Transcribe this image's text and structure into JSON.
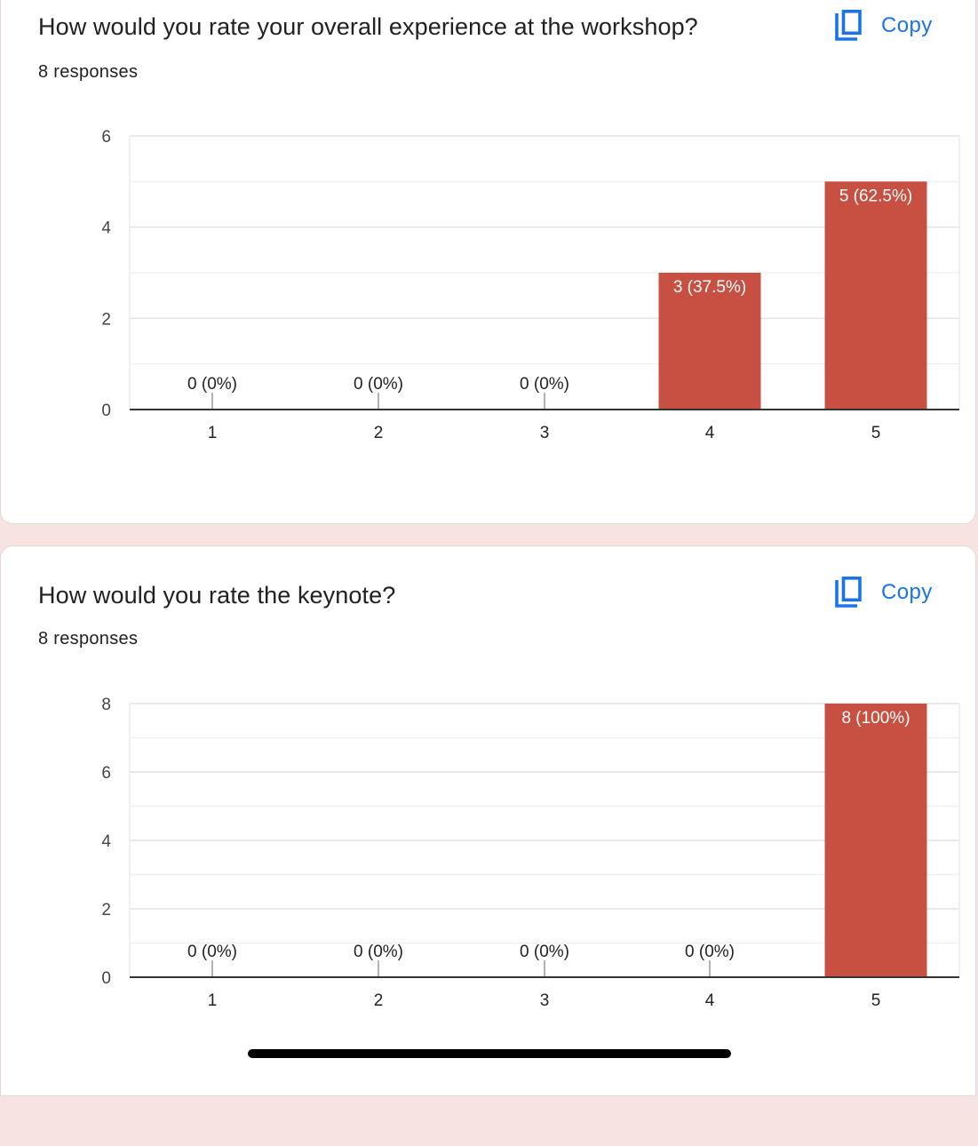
{
  "colors": {
    "bar": "#c85042",
    "accent": "#1a73e8",
    "grid": "#e8e8e8",
    "axis": "#333333",
    "text": "#202124"
  },
  "questions": [
    {
      "title": "How would you rate your overall experience at the workshop?",
      "responses": "8 responses",
      "copy_label": "Copy",
      "copy_icon": "copy-icon"
    },
    {
      "title": "How would you rate the keynote?",
      "responses": "8 responses",
      "copy_label": "Copy",
      "copy_icon": "copy-icon"
    }
  ],
  "chart_data": [
    {
      "type": "bar",
      "categories": [
        "1",
        "2",
        "3",
        "4",
        "5"
      ],
      "values": [
        0,
        0,
        0,
        3,
        5
      ],
      "labels": [
        "0 (0%)",
        "0 (0%)",
        "0 (0%)",
        "3 (37.5%)",
        "5 (62.5%)"
      ],
      "ylim": [
        0,
        6
      ],
      "yticks": [
        "0",
        "2",
        "4",
        "6"
      ],
      "grid": true,
      "legend": "none"
    },
    {
      "type": "bar",
      "categories": [
        "1",
        "2",
        "3",
        "4",
        "5"
      ],
      "values": [
        0,
        0,
        0,
        0,
        8
      ],
      "labels": [
        "0 (0%)",
        "0 (0%)",
        "0 (0%)",
        "0 (0%)",
        "8 (100%)"
      ],
      "ylim": [
        0,
        8
      ],
      "yticks": [
        "0",
        "2",
        "4",
        "6",
        "8"
      ],
      "grid": true,
      "legend": "none"
    }
  ]
}
